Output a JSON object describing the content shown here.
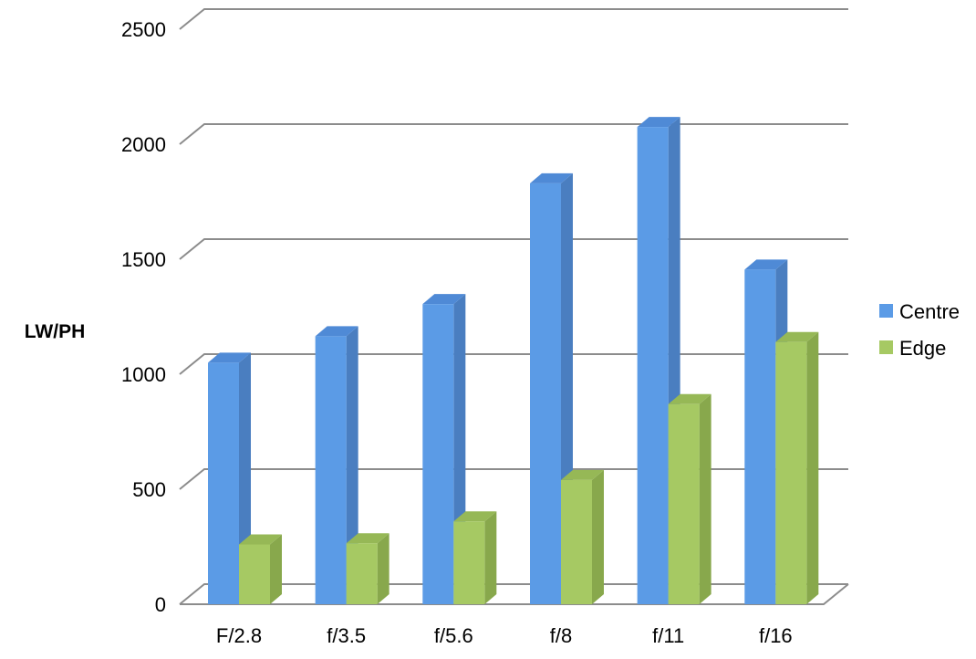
{
  "chart_data": {
    "type": "bar",
    "categories": [
      "F/2.8",
      "f/3.5",
      "f/5.6",
      "f/8",
      "f/11",
      "f/16"
    ],
    "series": [
      {
        "name": "Centre",
        "values": [
          1050,
          1165,
          1305,
          1830,
          2075,
          1455
        ]
      },
      {
        "name": "Edge",
        "values": [
          260,
          265,
          360,
          540,
          870,
          1140
        ]
      }
    ],
    "ylabel": "LW/PH",
    "ylim": [
      0,
      2500
    ],
    "yticks": [
      0,
      500,
      1000,
      1500,
      2000,
      2500
    ],
    "grid": true,
    "legend": "right",
    "colors": {
      "Centre": {
        "front": "#5b9be6",
        "side": "#4a7ec0",
        "top": "#4f8ad6"
      },
      "Edge": {
        "front": "#a6c963",
        "side": "#88a84c",
        "top": "#96b856"
      },
      "grid": "#8c8c8c"
    }
  }
}
